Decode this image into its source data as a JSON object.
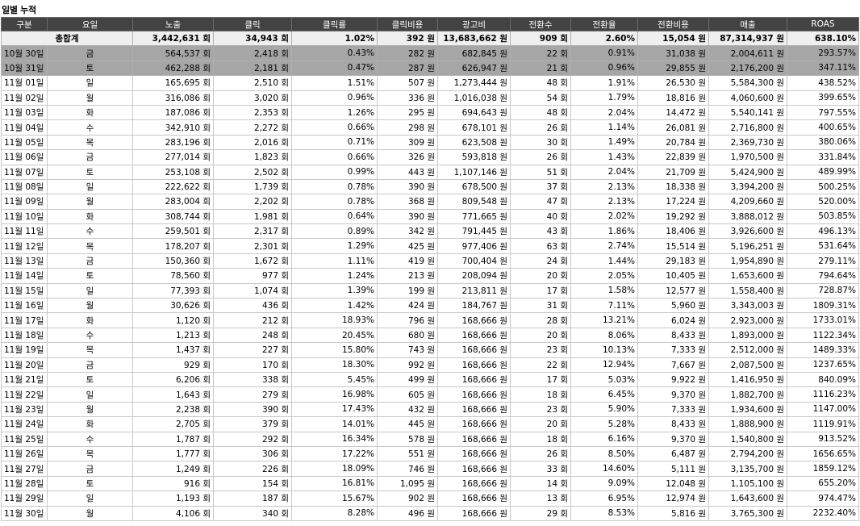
{
  "title": "일별 누적",
  "headers": [
    "구분",
    "요일",
    "노출",
    "클릭",
    "클릭률",
    "클릭비용",
    "광고비",
    "전환수",
    "전환율",
    "전환비용",
    "매출",
    "ROAS"
  ],
  "total": [
    "총합계",
    "",
    "3,442,631 회",
    "34,943 회",
    "1.02%",
    "392 원",
    "13,683,662 원",
    "909 회",
    "2.60%",
    "15,054 원",
    "87,314,937 원",
    "638.10%"
  ],
  "rows": [
    [
      "10월 30일",
      "금",
      "564,537 회",
      "2,418 회",
      "0.43%",
      "282 원",
      "682,845 원",
      "22 회",
      "0.91%",
      "31,038 원",
      "2,004,611 원",
      "293.57%"
    ],
    [
      "10월 31일",
      "토",
      "462,288 회",
      "2,181 회",
      "0.47%",
      "287 원",
      "626,947 원",
      "21 회",
      "0.96%",
      "29,855 원",
      "2,176,200 원",
      "347.11%"
    ],
    [
      "11월 01일",
      "일",
      "165,695 회",
      "2,510 회",
      "1.51%",
      "507 원",
      "1,273,444 원",
      "48 회",
      "1.91%",
      "26,530 원",
      "5,584,300 원",
      "438.52%"
    ],
    [
      "11월 02일",
      "월",
      "316,086 회",
      "3,020 회",
      "0.96%",
      "336 원",
      "1,016,038 원",
      "54 회",
      "1.79%",
      "18,816 원",
      "4,060,600 원",
      "399.65%"
    ],
    [
      "11월 03일",
      "화",
      "187,086 회",
      "2,353 회",
      "1.26%",
      "295 원",
      "694,643 원",
      "48 회",
      "2.04%",
      "14,472 원",
      "5,540,141 원",
      "797.55%"
    ],
    [
      "11월 04일",
      "수",
      "342,910 회",
      "2,272 회",
      "0.66%",
      "298 원",
      "678,101 원",
      "26 회",
      "1.14%",
      "26,081 원",
      "2,716,800 원",
      "400.65%"
    ],
    [
      "11월 05일",
      "목",
      "283,196 회",
      "2,016 회",
      "0.71%",
      "309 원",
      "623,508 원",
      "30 회",
      "1.49%",
      "20,784 원",
      "2,369,730 원",
      "380.06%"
    ],
    [
      "11월 06일",
      "금",
      "277,014 회",
      "1,823 회",
      "0.66%",
      "326 원",
      "593,818 원",
      "26 회",
      "1.43%",
      "22,839 원",
      "1,970,500 원",
      "331.84%"
    ],
    [
      "11월 07일",
      "토",
      "253,108 회",
      "2,502 회",
      "0.99%",
      "443 원",
      "1,107,146 원",
      "51 회",
      "2.04%",
      "21,709 원",
      "5,424,900 원",
      "489.99%"
    ],
    [
      "11월 08일",
      "일",
      "222,622 회",
      "1,739 회",
      "0.78%",
      "390 원",
      "678,500 원",
      "37 회",
      "2.13%",
      "18,338 원",
      "3,394,200 원",
      "500.25%"
    ],
    [
      "11월 09일",
      "월",
      "283,004 회",
      "2,202 회",
      "0.78%",
      "368 원",
      "809,548 원",
      "47 회",
      "2.13%",
      "17,224 원",
      "4,209,660 원",
      "520.00%"
    ],
    [
      "11월 10일",
      "화",
      "308,744 회",
      "1,981 회",
      "0.64%",
      "390 원",
      "771,665 원",
      "40 회",
      "2.02%",
      "19,292 원",
      "3,888,012 원",
      "503.85%"
    ],
    [
      "11월 11일",
      "수",
      "259,501 회",
      "2,317 회",
      "0.89%",
      "342 원",
      "791,445 원",
      "43 회",
      "1.86%",
      "18,406 원",
      "3,926,600 원",
      "496.13%"
    ],
    [
      "11월 12일",
      "목",
      "178,207 회",
      "2,301 회",
      "1.29%",
      "425 원",
      "977,406 원",
      "63 회",
      "2.74%",
      "15,514 원",
      "5,196,251 원",
      "531.64%"
    ],
    [
      "11월 13일",
      "금",
      "150,360 회",
      "1,672 회",
      "1.11%",
      "419 원",
      "700,404 원",
      "24 회",
      "1.44%",
      "29,183 원",
      "1,954,890 원",
      "279.11%"
    ],
    [
      "11월 14일",
      "토",
      "78,560 회",
      "977 회",
      "1.24%",
      "213 원",
      "208,094 원",
      "20 회",
      "2.05%",
      "10,405 원",
      "1,653,600 원",
      "794.64%"
    ],
    [
      "11월 15일",
      "일",
      "77,393 회",
      "1,074 회",
      "1.39%",
      "199 원",
      "213,811 원",
      "17 회",
      "1.58%",
      "12,577 원",
      "1,558,400 원",
      "728.87%"
    ],
    [
      "11월 16일",
      "월",
      "30,626 회",
      "436 회",
      "1.42%",
      "424 원",
      "184,767 원",
      "31 회",
      "7.11%",
      "5,960 원",
      "3,343,003 원",
      "1809.31%"
    ],
    [
      "11월 17일",
      "화",
      "1,120 회",
      "212 회",
      "18.93%",
      "796 원",
      "168,666 원",
      "28 회",
      "13.21%",
      "6,024 원",
      "2,923,000 원",
      "1733.01%"
    ],
    [
      "11월 18일",
      "수",
      "1,213 회",
      "248 회",
      "20.45%",
      "680 원",
      "168,666 원",
      "20 회",
      "8.06%",
      "8,433 원",
      "1,893,000 원",
      "1122.34%"
    ],
    [
      "11월 19일",
      "목",
      "1,437 회",
      "227 회",
      "15.80%",
      "743 원",
      "168,666 원",
      "23 회",
      "10.13%",
      "7,333 원",
      "2,512,000 원",
      "1489.33%"
    ],
    [
      "11월 20일",
      "금",
      "929 회",
      "170 회",
      "18.30%",
      "992 원",
      "168,666 원",
      "22 회",
      "12.94%",
      "7,667 원",
      "2,087,500 원",
      "1237.65%"
    ],
    [
      "11월 21일",
      "토",
      "6,206 회",
      "338 회",
      "5.45%",
      "499 원",
      "168,666 원",
      "17 회",
      "5.03%",
      "9,922 원",
      "1,416,950 원",
      "840.09%"
    ],
    [
      "11월 22일",
      "일",
      "1,643 회",
      "279 회",
      "16.98%",
      "605 원",
      "168,666 원",
      "18 회",
      "6.45%",
      "9,370 원",
      "1,882,700 원",
      "1116.23%"
    ],
    [
      "11월 23일",
      "월",
      "2,238 회",
      "390 회",
      "17.43%",
      "432 원",
      "168,666 원",
      "23 회",
      "5.90%",
      "7,333 원",
      "1,934,600 원",
      "1147.00%"
    ],
    [
      "11월 24일",
      "화",
      "2,705 회",
      "379 회",
      "14.01%",
      "445 원",
      "168,666 원",
      "20 회",
      "5.28%",
      "8,433 원",
      "1,888,900 원",
      "1119.91%"
    ],
    [
      "11월 25일",
      "수",
      "1,787 회",
      "292 회",
      "16.34%",
      "578 원",
      "168,666 원",
      "18 회",
      "6.16%",
      "9,370 원",
      "1,540,800 원",
      "913.52%"
    ],
    [
      "11월 26일",
      "목",
      "1,777 회",
      "306 회",
      "17.22%",
      "551 원",
      "168,666 원",
      "26 회",
      "8.50%",
      "6,487 원",
      "2,794,200 원",
      "1656.65%"
    ],
    [
      "11월 27일",
      "금",
      "1,249 회",
      "226 회",
      "18.09%",
      "746 원",
      "168,666 원",
      "33 회",
      "14.60%",
      "5,111 원",
      "3,135,700 원",
      "1859.12%"
    ],
    [
      "11월 28일",
      "토",
      "916 회",
      "154 회",
      "16.81%",
      "1,095 원",
      "168,666 원",
      "14 회",
      "9.09%",
      "12,048 원",
      "1,105,100 원",
      "655.20%"
    ],
    [
      "11월 29일",
      "일",
      "1,193 회",
      "187 회",
      "15.67%",
      "902 원",
      "168,666 원",
      "13 회",
      "6.95%",
      "12,974 원",
      "1,643,600 원",
      "974.47%"
    ],
    [
      "11월 30일",
      "월",
      "4,106 회",
      "340 회",
      "8.28%",
      "496 원",
      "168,666 원",
      "29 회",
      "8.53%",
      "5,816 원",
      "3,765,300 원",
      "2232.40%"
    ]
  ]
}
